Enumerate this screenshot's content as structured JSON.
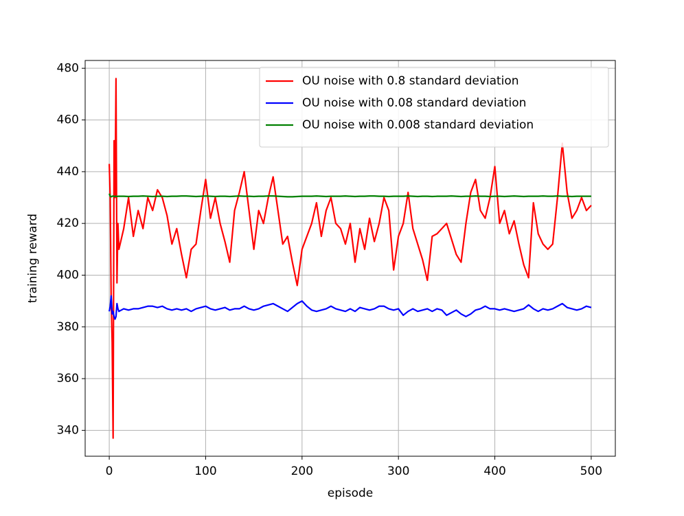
{
  "chart_data": {
    "type": "line",
    "x_label": "episode",
    "y_label": "training reward",
    "x": [
      0,
      1,
      2,
      3,
      4,
      5,
      6,
      7,
      8,
      9,
      10,
      15,
      20,
      25,
      30,
      35,
      40,
      45,
      50,
      55,
      60,
      65,
      70,
      75,
      80,
      85,
      90,
      95,
      100,
      105,
      110,
      115,
      120,
      125,
      130,
      135,
      140,
      145,
      150,
      155,
      160,
      165,
      170,
      175,
      180,
      185,
      190,
      195,
      200,
      205,
      210,
      215,
      220,
      225,
      230,
      235,
      240,
      245,
      250,
      255,
      260,
      265,
      270,
      275,
      280,
      285,
      290,
      295,
      300,
      305,
      310,
      315,
      320,
      325,
      330,
      335,
      340,
      345,
      350,
      355,
      360,
      365,
      370,
      375,
      380,
      385,
      390,
      395,
      400,
      405,
      410,
      415,
      420,
      425,
      430,
      435,
      440,
      445,
      450,
      455,
      460,
      465,
      470,
      475,
      480,
      485,
      490,
      495,
      500
    ],
    "series": [
      {
        "name": "OU noise with 0.8 standard deviation",
        "color": "#ff0000",
        "values": [
          443,
          430,
          390,
          374,
          337,
          452,
          430,
          476,
          397,
          420,
          410,
          418,
          430,
          415,
          425,
          418,
          430,
          425,
          433,
          430,
          423,
          412,
          418,
          408,
          399,
          410,
          412,
          425,
          437,
          422,
          430,
          420,
          413,
          405,
          425,
          432,
          440,
          425,
          410,
          425,
          420,
          430,
          438,
          425,
          412,
          415,
          405,
          396,
          410,
          415,
          420,
          428,
          415,
          425,
          430,
          420,
          418,
          412,
          420,
          405,
          418,
          410,
          422,
          413,
          420,
          430,
          425,
          402,
          415,
          420,
          432,
          418,
          412,
          406,
          398,
          415,
          416,
          418,
          420,
          414,
          408,
          405,
          420,
          432,
          437,
          425,
          422,
          430,
          442,
          420,
          425,
          416,
          421,
          412,
          404,
          399,
          428,
          416,
          412,
          410,
          412,
          430,
          451,
          432,
          422,
          425,
          430,
          425,
          427
        ]
      },
      {
        "name": "OU noise with 0.08 standard deviation",
        "color": "#0000ff",
        "values": [
          386,
          388,
          392,
          385,
          386,
          384,
          383,
          384,
          389,
          387,
          386,
          387,
          386.5,
          387,
          387,
          387.5,
          388,
          388,
          387.5,
          388,
          387,
          386.5,
          387,
          386.5,
          387,
          386,
          387,
          387.5,
          388,
          387,
          386.5,
          387,
          387.5,
          386.5,
          387,
          387,
          388,
          387,
          386.5,
          387,
          388,
          388.5,
          389,
          388,
          387,
          386,
          387.5,
          389,
          390,
          388,
          386.5,
          386,
          386.5,
          387,
          388,
          387,
          386.5,
          386,
          387,
          386,
          387.5,
          387,
          386.5,
          387,
          388,
          388,
          387,
          386.5,
          387,
          384.5,
          386,
          387,
          386,
          386.5,
          387,
          386,
          387,
          386.5,
          384.5,
          385.5,
          386.5,
          385,
          384,
          385,
          386.5,
          387,
          388,
          387,
          387,
          386.5,
          387,
          386.5,
          386,
          386.5,
          387,
          388.5,
          387,
          386,
          387,
          386.5,
          387,
          388,
          389,
          387.5,
          387,
          386.5,
          387,
          388,
          387.5
        ]
      },
      {
        "name": "OU noise with 0.008 standard deviation",
        "color": "#008000",
        "values": [
          431.5,
          430.5,
          430.3,
          430.5,
          430.6,
          430.4,
          430.5,
          430.5,
          430.4,
          430.5,
          430.5,
          430.5,
          430.4,
          430.5,
          430.5,
          430.6,
          430.5,
          430.4,
          430.5,
          430.5,
          430.4,
          430.5,
          430.5,
          430.6,
          430.6,
          430.5,
          430.4,
          430.5,
          430.6,
          430.5,
          430.4,
          430.5,
          430.5,
          430.4,
          430.5,
          430.6,
          430.5,
          430.5,
          430.4,
          430.5,
          430.5,
          430.6,
          430.6,
          430.5,
          430.4,
          430.3,
          430.3,
          430.4,
          430.5,
          430.5,
          430.5,
          430.6,
          430.5,
          430.4,
          430.5,
          430.5,
          430.5,
          430.6,
          430.5,
          430.4,
          430.5,
          430.5,
          430.6,
          430.6,
          430.5,
          430.5,
          430.4,
          430.5,
          430.5,
          430.5,
          430.6,
          430.5,
          430.4,
          430.5,
          430.5,
          430.4,
          430.5,
          430.5,
          430.5,
          430.6,
          430.5,
          430.4,
          430.5,
          430.5,
          430.6,
          430.5,
          430.5,
          430.4,
          430.5,
          430.5,
          430.4,
          430.5,
          430.6,
          430.5,
          430.4,
          430.5,
          430.5,
          430.5,
          430.6,
          430.5,
          430.5,
          430.6,
          430.5,
          430.5,
          430.4,
          430.5,
          430.5,
          430.5,
          430.5
        ]
      }
    ],
    "xlim": [
      -25,
      525
    ],
    "ylim": [
      330,
      483
    ],
    "xticks": [
      0,
      100,
      200,
      300,
      400,
      500
    ],
    "yticks": [
      340,
      360,
      380,
      400,
      420,
      440,
      460,
      480
    ],
    "grid": true,
    "legend": "upper right"
  }
}
